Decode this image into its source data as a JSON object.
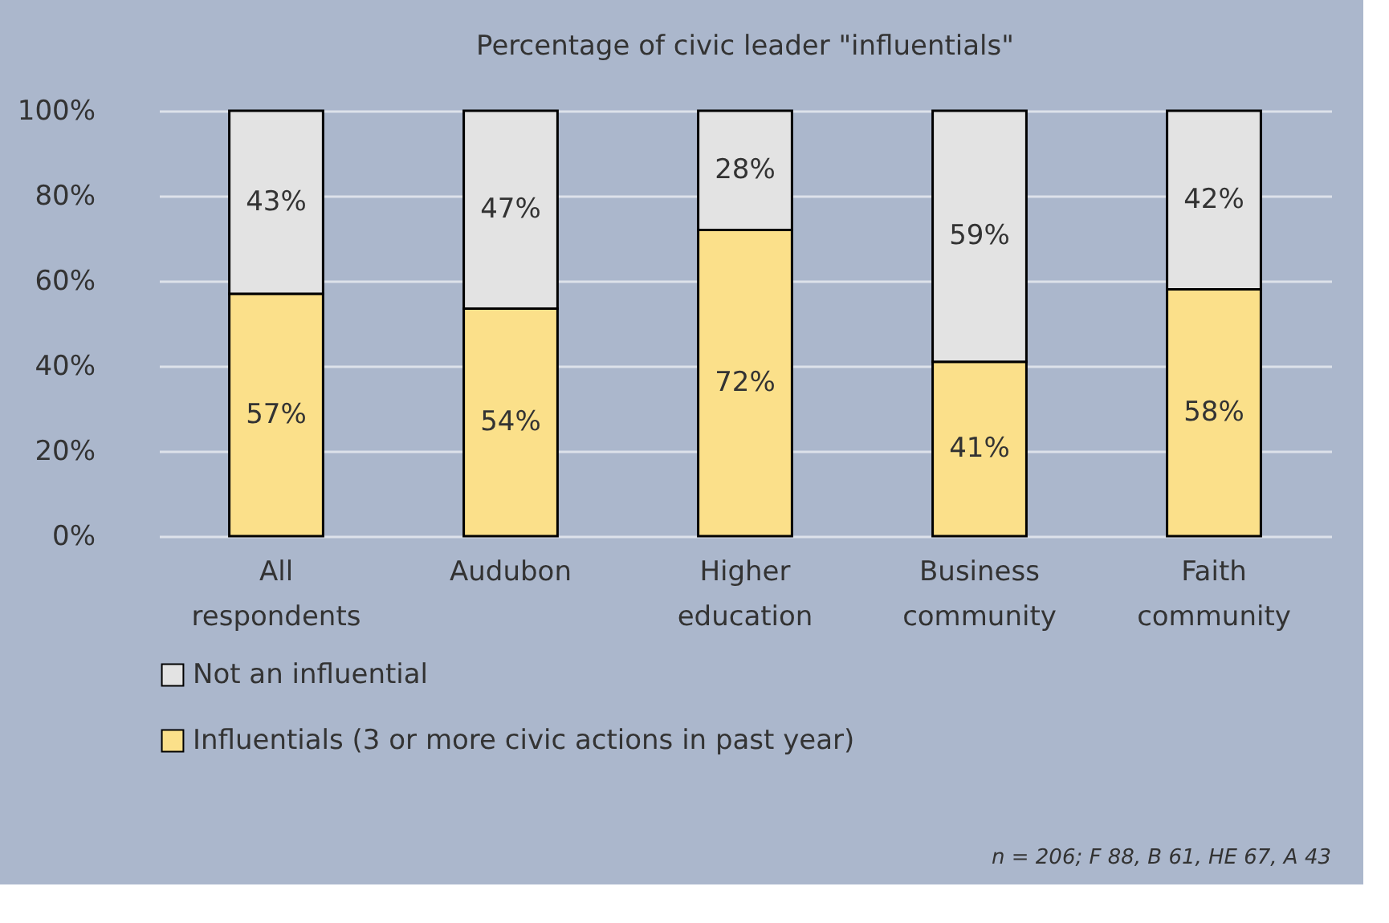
{
  "chart_data": {
    "type": "bar",
    "stacked": true,
    "title": "Percentage of civic leader \"influentials\"",
    "categories": [
      "All respondents",
      "Audubon",
      "Higher education",
      "Business community",
      "Faith community"
    ],
    "series": [
      {
        "name": "Influentials (3 or more civic actions in past year)",
        "color": "#fbe08a",
        "values": [
          57,
          53.5,
          72,
          41,
          58
        ],
        "value_labels": [
          "57%",
          "54%",
          "72%",
          "41%",
          "58%"
        ]
      },
      {
        "name": "Not an influential",
        "color": "#e3e3e3",
        "values": [
          43,
          46.5,
          28,
          59,
          42
        ],
        "value_labels": [
          "43%",
          "47%",
          "28%",
          "59%",
          "42%"
        ]
      }
    ],
    "ylim": [
      0,
      100
    ],
    "yticks": [
      {
        "value": 0,
        "label": "0%"
      },
      {
        "value": 20,
        "label": "20%"
      },
      {
        "value": 40,
        "label": "40%"
      },
      {
        "value": 60,
        "label": "60%"
      },
      {
        "value": 80,
        "label": "80%"
      },
      {
        "value": 100,
        "label": "100%"
      }
    ],
    "grid": "y",
    "legend": "bottom",
    "annotations": [
      "n = 206; F 88, B 61, HE 67, A 43"
    ]
  }
}
